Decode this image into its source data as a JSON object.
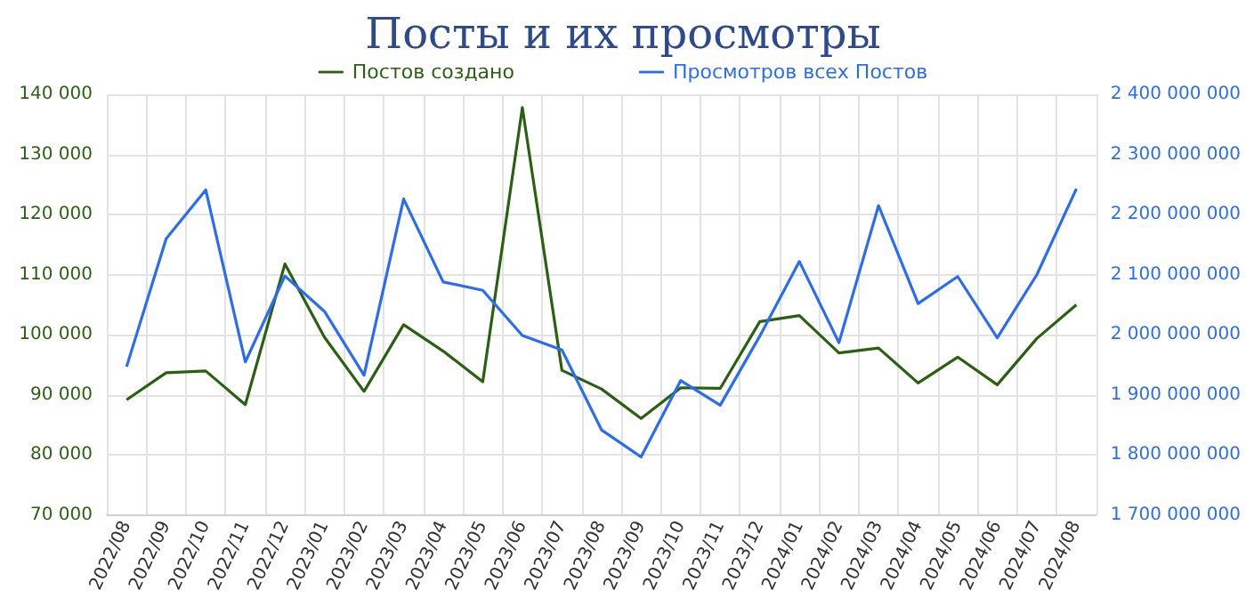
{
  "chart_data": {
    "type": "line",
    "title": "Посты и их просмотры",
    "categories": [
      "2022/08",
      "2022/09",
      "2022/10",
      "2022/11",
      "2022/12",
      "2023/01",
      "2023/02",
      "2023/03",
      "2023/04",
      "2023/05",
      "2023/06",
      "2023/07",
      "2023/08",
      "2023/09",
      "2023/10",
      "2023/11",
      "2023/12",
      "2024/01",
      "2024/02",
      "2024/03",
      "2024/04",
      "2024/05",
      "2024/06",
      "2024/07",
      "2024/08"
    ],
    "series": [
      {
        "name": "Постов создано",
        "color": "#2a6110",
        "values": [
          89200,
          93700,
          94000,
          88400,
          111800,
          99600,
          90600,
          101700,
          97300,
          92200,
          137800,
          94100,
          91000,
          86100,
          91200,
          91100,
          102200,
          103200,
          97000,
          97800,
          92000,
          96300,
          91700,
          99400,
          105000
        ]
      },
      {
        "name": "Просмотров всех Постов",
        "color": "#2a6cf6",
        "axis": "y2",
        "values": [
          1947000000,
          2160000000,
          2241000000,
          1955000000,
          2098000000,
          2039000000,
          1933000000,
          2226000000,
          2088000000,
          2074000000,
          1999000000,
          1975000000,
          1842000000,
          1797000000,
          1924000000,
          1883000000,
          1998000000,
          2122000000,
          1987000000,
          2215000000,
          2052000000,
          2097000000,
          1995000000,
          2100000000,
          2243000000
        ]
      }
    ],
    "ylim": [
      70000,
      140000
    ],
    "yticks": [
      70000,
      80000,
      90000,
      100000,
      110000,
      120000,
      130000,
      140000
    ],
    "y2lim": [
      1700000000,
      2400000000
    ],
    "y2ticks": [
      1700000000,
      1800000000,
      1900000000,
      2000000000,
      2100000000,
      2200000000,
      2300000000,
      2400000000
    ],
    "grid": true,
    "legend": "top",
    "marker": "none",
    "line_style": "solid"
  }
}
